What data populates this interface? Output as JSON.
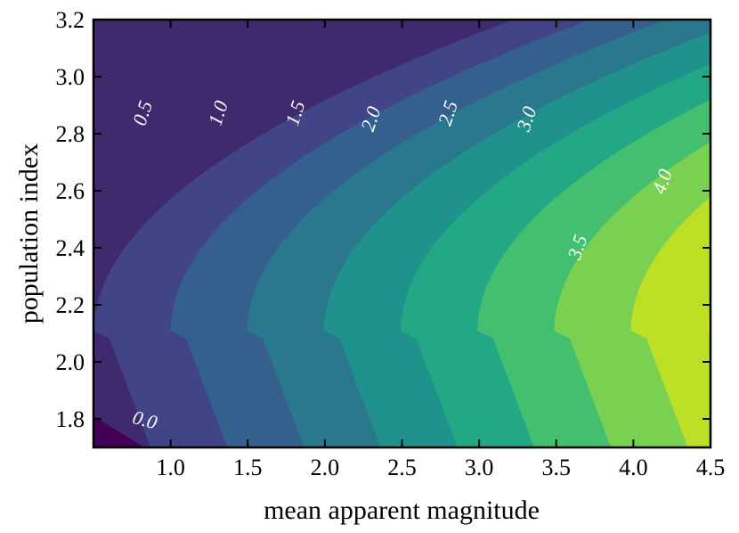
{
  "chart_data": {
    "type": "contour",
    "xlabel": "mean apparent magnitude",
    "ylabel": "population index",
    "xlim": [
      0.5,
      4.5
    ],
    "ylim": [
      1.7,
      3.2
    ],
    "x_ticks": [
      "1.0",
      "1.5",
      "2.0",
      "2.5",
      "3.0",
      "3.5",
      "4.0",
      "4.5"
    ],
    "y_ticks": [
      "1.8",
      "2.0",
      "2.2",
      "2.4",
      "2.6",
      "2.8",
      "3.0",
      "3.2"
    ],
    "colormap": "viridis",
    "levels": [
      0.0,
      0.5,
      1.0,
      1.5,
      2.0,
      2.5,
      3.0,
      3.5,
      4.0
    ],
    "level_colors": [
      "#3f2a6e",
      "#414487",
      "#355f8d",
      "#2a788e",
      "#21918c",
      "#22a884",
      "#44bf70",
      "#7ad151",
      "#bddf26"
    ],
    "top_color": "#e3e419",
    "bottom_color": "#440154",
    "contour_labels": [
      {
        "text": "0.0",
        "x": 0.83,
        "y": 1.79
      },
      {
        "text": "0.5",
        "x": 0.83,
        "y": 2.87
      },
      {
        "text": "1.0",
        "x": 1.32,
        "y": 2.87
      },
      {
        "text": "1.5",
        "x": 1.82,
        "y": 2.87
      },
      {
        "text": "2.0",
        "x": 2.31,
        "y": 2.85
      },
      {
        "text": "2.5",
        "x": 2.81,
        "y": 2.87
      },
      {
        "text": "3.0",
        "x": 3.32,
        "y": 2.85
      },
      {
        "text": "3.5",
        "x": 3.65,
        "y": 2.4
      },
      {
        "text": "4.0",
        "x": 4.2,
        "y": 2.63
      }
    ]
  }
}
